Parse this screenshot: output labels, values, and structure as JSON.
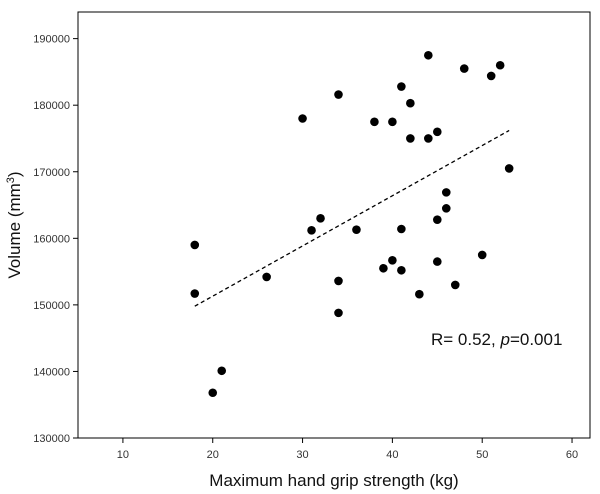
{
  "chart_data": {
    "type": "scatter",
    "title": "",
    "xlabel": "Maximum hand grip strength (kg)",
    "ylabel_main": "Volume (mm",
    "ylabel_sup": "3",
    "ylabel_close": ")",
    "xlim": [
      5,
      62
    ],
    "ylim": [
      130000,
      194000
    ],
    "xticks": [
      10,
      20,
      30,
      40,
      50,
      60
    ],
    "yticks": [
      130000,
      140000,
      150000,
      160000,
      170000,
      180000,
      190000
    ],
    "grid": false,
    "colors": {
      "point": "#000000",
      "fit_line": "#000000",
      "frame": "#000000"
    },
    "points": [
      {
        "x": 18,
        "y": 159000
      },
      {
        "x": 18,
        "y": 151700
      },
      {
        "x": 20,
        "y": 136800
      },
      {
        "x": 21,
        "y": 140100
      },
      {
        "x": 26,
        "y": 154200
      },
      {
        "x": 30,
        "y": 178000
      },
      {
        "x": 31,
        "y": 161200
      },
      {
        "x": 32,
        "y": 163000
      },
      {
        "x": 34,
        "y": 181600
      },
      {
        "x": 34,
        "y": 153600
      },
      {
        "x": 34,
        "y": 148800
      },
      {
        "x": 36,
        "y": 161300
      },
      {
        "x": 38,
        "y": 177500
      },
      {
        "x": 39,
        "y": 155500
      },
      {
        "x": 40,
        "y": 177500
      },
      {
        "x": 40,
        "y": 156700
      },
      {
        "x": 41,
        "y": 182800
      },
      {
        "x": 41,
        "y": 161400
      },
      {
        "x": 41,
        "y": 155200
      },
      {
        "x": 42,
        "y": 180300
      },
      {
        "x": 42,
        "y": 175000
      },
      {
        "x": 43,
        "y": 151600
      },
      {
        "x": 44,
        "y": 187500
      },
      {
        "x": 44,
        "y": 175000
      },
      {
        "x": 45,
        "y": 176000
      },
      {
        "x": 45,
        "y": 162800
      },
      {
        "x": 45,
        "y": 156500
      },
      {
        "x": 46,
        "y": 166900
      },
      {
        "x": 46,
        "y": 164500
      },
      {
        "x": 47,
        "y": 153000
      },
      {
        "x": 48,
        "y": 185500
      },
      {
        "x": 50,
        "y": 157500
      },
      {
        "x": 51,
        "y": 184400
      },
      {
        "x": 52,
        "y": 186000
      },
      {
        "x": 53,
        "y": 170500
      }
    ],
    "fit_line": {
      "style": "dashed",
      "x1": 18,
      "y1": 149800,
      "x2": 53,
      "y2": 176200
    },
    "annotation": {
      "prefix": "R= 0.52, ",
      "p_symbol": "p",
      "suffix": "=0.001",
      "x": 44.3,
      "y": 144000
    }
  }
}
